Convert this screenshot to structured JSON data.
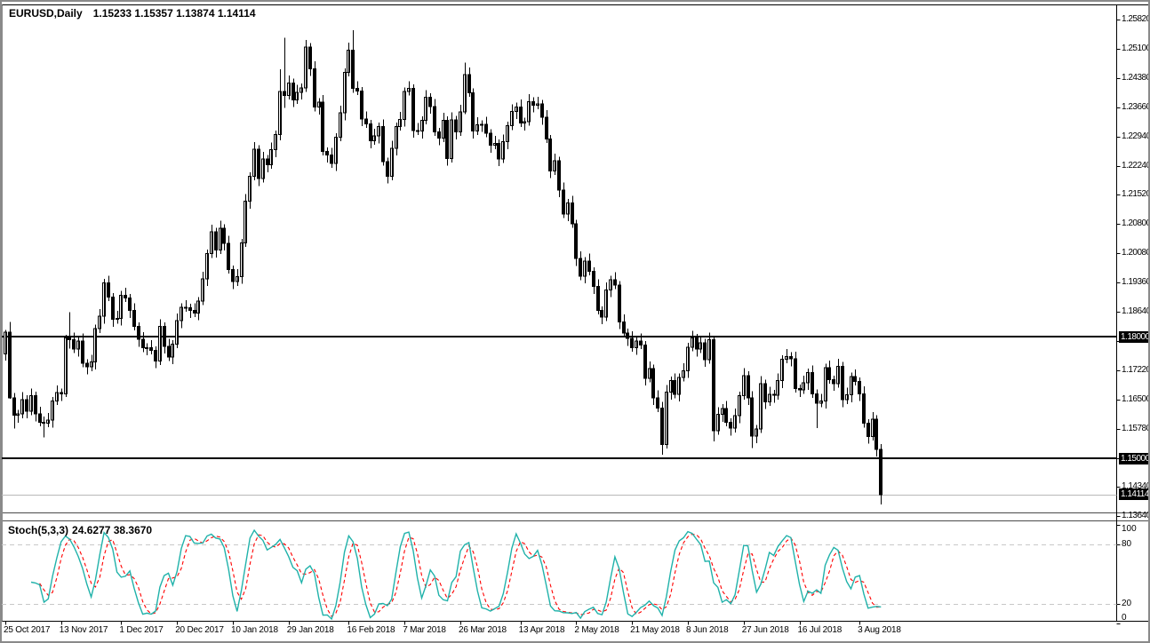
{
  "window": {
    "symbol_period": "EURUSD,Daily",
    "title_ohlc": "1.15233 1.15357 1.13874 1.14114"
  },
  "colors": {
    "background": "#ffffff",
    "candle_outline": "#000000",
    "candle_bull_fill": "#ffffff",
    "candle_bear_fill": "#000000",
    "sr_line": "#000000",
    "current_price_line": "#b8b8b8",
    "stoch_main": "#20B2AA",
    "stoch_signal": "#FF0000",
    "stoch_levels": "#c8c8c8",
    "axis_line": "#000000",
    "tag_bg": "#000000",
    "tag_text": "#ffffff"
  },
  "chart_data": {
    "type": "candlestick",
    "symbol": "EURUSD",
    "timeframe": "Daily",
    "title": "EURUSD,Daily 1.15233 1.15357 1.13874 1.14114",
    "last_bar_ohlc": {
      "open": 1.15233,
      "high": 1.15357,
      "low": 1.13874,
      "close": 1.14114
    },
    "price_axis": {
      "labels": [
        "1.25820",
        "1.25100",
        "1.24380",
        "1.23660",
        "1.22940",
        "1.22240",
        "1.21520",
        "1.20800",
        "1.20080",
        "1.19360",
        "1.18640",
        "1.17940",
        "1.17220",
        "1.16500",
        "1.15780",
        "1.15060",
        "1.14340",
        "1.13640"
      ],
      "top_value": 1.2582,
      "step": 0.0072
    },
    "hlines": [
      {
        "price": 1.18,
        "label": "1.18000"
      },
      {
        "price": 1.15,
        "label": "1.15000"
      }
    ],
    "current_price": {
      "price": 1.14114,
      "label": "1.14114"
    },
    "x_axis": {
      "labels": [
        "25 Oct 2017",
        "13 Nov 2017",
        "1 Dec 2017",
        "20 Dec 2017",
        "10 Jan 2018",
        "29 Jan 2018",
        "16 Feb 2018",
        "7 Mar 2018",
        "26 Mar 2018",
        "13 Apr 2018",
        "2 May 2018",
        "21 May 2018",
        "8 Jun 2018",
        "27 Jun 2018",
        "16 Jul 2018",
        "3 Aug 2018"
      ],
      "tick_bar_indices": [
        0,
        13,
        27,
        40,
        53,
        66,
        80,
        93,
        106,
        120,
        133,
        146,
        159,
        172,
        185,
        199
      ]
    },
    "candles": {
      "note": "open = previous close; highs/lows derived from wick params unless overridden",
      "first_open": 1.1758,
      "wick_upper_even": 0.0018,
      "wick_lower_even": 0.001,
      "wick_upper_odd": 0.001,
      "wick_lower_odd": 0.0018,
      "closes": [
        1.1812,
        1.165,
        1.1607,
        1.161,
        1.1646,
        1.1617,
        1.1655,
        1.161,
        1.159,
        1.1588,
        1.1595,
        1.1642,
        1.1663,
        1.166,
        1.1797,
        1.1793,
        1.177,
        1.179,
        1.1735,
        1.1726,
        1.1738,
        1.182,
        1.1851,
        1.1933,
        1.1898,
        1.1843,
        1.1846,
        1.1903,
        1.1896,
        1.1865,
        1.1826,
        1.1794,
        1.1773,
        1.1774,
        1.1767,
        1.1741,
        1.1826,
        1.1777,
        1.1751,
        1.1782,
        1.184,
        1.1873,
        1.1872,
        1.1865,
        1.1859,
        1.1888,
        1.1943,
        1.2005,
        1.2059,
        1.2014,
        1.2068,
        1.2031,
        1.1966,
        1.1936,
        1.1949,
        1.2032,
        1.2134,
        1.2196,
        1.2262,
        1.219,
        1.2238,
        1.2224,
        1.2261,
        1.2299,
        1.2405,
        1.2395,
        1.2426,
        1.2384,
        1.2403,
        1.2414,
        1.2514,
        1.2461,
        1.2366,
        1.2378,
        1.2257,
        1.2248,
        1.2227,
        1.2292,
        1.2352,
        1.2452,
        1.2507,
        1.2412,
        1.2406,
        1.2337,
        1.2325,
        1.2283,
        1.2295,
        1.2318,
        1.2232,
        1.2196,
        1.2265,
        1.2318,
        1.2336,
        1.2405,
        1.2412,
        1.2309,
        1.2307,
        1.2334,
        1.239,
        1.2368,
        1.2305,
        1.229,
        1.2334,
        1.224,
        1.2335,
        1.2305,
        1.2354,
        1.2446,
        1.2402,
        1.2307,
        1.2323,
        1.2324,
        1.2302,
        1.2272,
        1.2277,
        1.2239,
        1.2281,
        1.232,
        1.2355,
        1.2367,
        1.2327,
        1.233,
        1.238,
        1.2371,
        1.2374,
        1.2341,
        1.2288,
        1.2209,
        1.2234,
        1.2162,
        1.2103,
        1.213,
        1.2079,
        1.1993,
        1.195,
        1.1987,
        1.1962,
        1.1924,
        1.1865,
        1.1849,
        1.1916,
        1.1941,
        1.1928,
        1.1837,
        1.181,
        1.1796,
        1.1774,
        1.179,
        1.178,
        1.1698,
        1.1722,
        1.165,
        1.1625,
        1.1535,
        1.1664,
        1.1692,
        1.1659,
        1.17,
        1.1717,
        1.1775,
        1.1797,
        1.177,
        1.1785,
        1.1744,
        1.1793,
        1.1569,
        1.1609,
        1.1624,
        1.159,
        1.1575,
        1.1606,
        1.1655,
        1.1705,
        1.165,
        1.1556,
        1.1573,
        1.1685,
        1.164,
        1.1659,
        1.1656,
        1.1692,
        1.1745,
        1.1752,
        1.1746,
        1.1673,
        1.167,
        1.1687,
        1.1712,
        1.166,
        1.1637,
        1.1642,
        1.1724,
        1.1695,
        1.1685,
        1.1728,
        1.1645,
        1.1657,
        1.1702,
        1.169,
        1.166,
        1.1587,
        1.1555,
        1.1597,
        1.15233,
        1.14114
      ],
      "overrides": {
        "0": [
          1.1758,
          1.1817,
          1.1742,
          1.1812
        ],
        "1": [
          1.1812,
          1.1837,
          1.1648,
          1.165
        ],
        "2": [
          1.165,
          1.1662,
          1.1574,
          1.1607
        ],
        "9": [
          1.159,
          1.1604,
          1.1553,
          1.1588
        ],
        "14": [
          1.166,
          1.1805,
          1.1652,
          1.1797
        ],
        "15": [
          1.1797,
          1.1861,
          1.1771,
          1.1793
        ],
        "64": [
          1.2299,
          1.2459,
          1.2284,
          1.2405
        ],
        "65": [
          1.2405,
          1.2537,
          1.2364,
          1.2395
        ],
        "81": [
          1.2507,
          1.2556,
          1.2402,
          1.2412
        ],
        "107": [
          1.2354,
          1.2476,
          1.2349,
          1.2446
        ],
        "153": [
          1.1625,
          1.164,
          1.151,
          1.1535
        ],
        "165": [
          1.1793,
          1.1801,
          1.1543,
          1.1569
        ],
        "174": [
          1.165,
          1.1666,
          1.1526,
          1.1556
        ],
        "189": [
          1.166,
          1.1671,
          1.1575,
          1.1637
        ],
        "204": [
          1.15233,
          1.15357,
          1.13874,
          1.14114
        ]
      }
    },
    "stochastic": {
      "label": "Stoch(5,3,3)",
      "values_text": "24.6277 38.3670",
      "k_period": 5,
      "d_period": 3,
      "slowing": 3,
      "current_main": 24.6277,
      "current_signal": 38.367,
      "levels": [
        80,
        20
      ],
      "axis_labels": [
        "100",
        "80",
        "20",
        "0"
      ],
      "axis_values": [
        100,
        80,
        20,
        0
      ],
      "range": [
        0,
        100
      ]
    }
  }
}
